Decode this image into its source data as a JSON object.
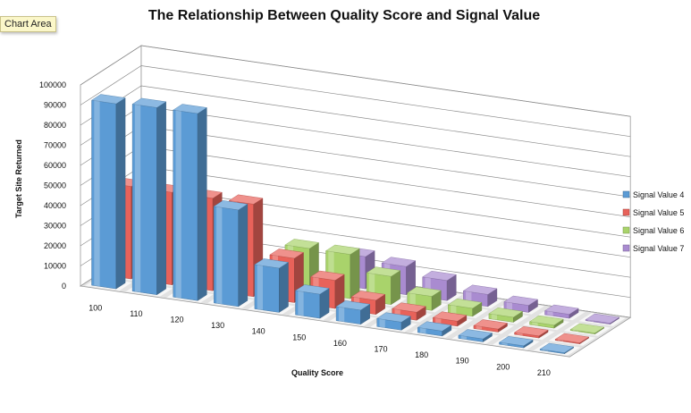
{
  "tooltip": "Chart Area",
  "chart_data": {
    "type": "bar",
    "subtype": "3d-column",
    "title": "The Relationship Between Quality Score and Signal Value",
    "xlabel": "Quality Score",
    "ylabel": "Target Site Returned",
    "ylim": [
      0,
      100000
    ],
    "y_ticks": [
      "0",
      "10000",
      "20000",
      "30000",
      "40000",
      "50000",
      "60000",
      "70000",
      "80000",
      "90000",
      "100000"
    ],
    "categories": [
      "100",
      "110",
      "120",
      "130",
      "140",
      "150",
      "160",
      "170",
      "180",
      "190",
      "200",
      "210"
    ],
    "grid": true,
    "legend_position": "right",
    "series": [
      {
        "name": "Signal Value 4",
        "color": "#5b9bd5",
        "values": [
          92000,
          93000,
          93000,
          48000,
          22000,
          12000,
          7000,
          4000,
          2500,
          1500,
          1000,
          500
        ]
      },
      {
        "name": "Signal Value 5",
        "color": "#e8625a",
        "values": [
          46000,
          46000,
          46000,
          46000,
          22000,
          14000,
          7000,
          4000,
          2500,
          1500,
          1000,
          500
        ]
      },
      {
        "name": "Signal Value 6",
        "color": "#a9d36b",
        "values": [
          null,
          null,
          null,
          null,
          22000,
          22000,
          14000,
          7000,
          4000,
          2500,
          1500,
          500
        ]
      },
      {
        "name": "Signal Value 7",
        "color": "#a98bd0",
        "values": [
          null,
          null,
          null,
          null,
          null,
          16000,
          14000,
          10000,
          6000,
          3500,
          2000,
          500
        ]
      }
    ]
  }
}
